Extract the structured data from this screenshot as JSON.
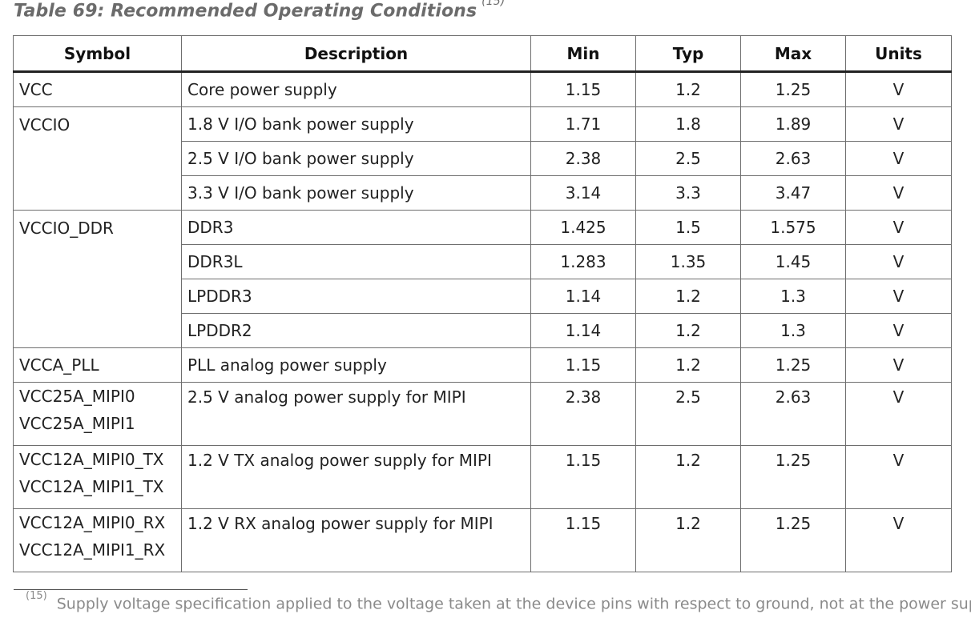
{
  "caption": {
    "title": "Table 69: Recommended Operating Conditions",
    "ref": "(15)"
  },
  "headers": {
    "symbol": "Symbol",
    "description": "Description",
    "min": "Min",
    "typ": "Typ",
    "max": "Max",
    "units": "Units"
  },
  "rows": [
    {
      "symbol": [
        "VCC"
      ],
      "description": "Core power supply",
      "min": "1.15",
      "typ": "1.2",
      "max": "1.25",
      "units": "V"
    },
    {
      "symbol": [
        "VCCIO"
      ],
      "description": "1.8 V I/O bank power supply",
      "min": "1.71",
      "typ": "1.8",
      "max": "1.89",
      "units": "V"
    },
    {
      "symbol": [],
      "description": "2.5 V I/O bank power supply",
      "min": "2.38",
      "typ": "2.5",
      "max": "2.63",
      "units": "V"
    },
    {
      "symbol": [],
      "description": "3.3 V I/O bank power supply",
      "min": "3.14",
      "typ": "3.3",
      "max": "3.47",
      "units": "V"
    },
    {
      "symbol": [
        "VCCIO_DDR"
      ],
      "description": "DDR3",
      "min": "1.425",
      "typ": "1.5",
      "max": "1.575",
      "units": "V"
    },
    {
      "symbol": [],
      "description": "DDR3L",
      "min": "1.283",
      "typ": "1.35",
      "max": "1.45",
      "units": "V"
    },
    {
      "symbol": [],
      "description": "LPDDR3",
      "min": "1.14",
      "typ": "1.2",
      "max": "1.3",
      "units": "V"
    },
    {
      "symbol": [],
      "description": "LPDDR2",
      "min": "1.14",
      "typ": "1.2",
      "max": "1.3",
      "units": "V"
    },
    {
      "symbol": [
        "VCCA_PLL"
      ],
      "description": "PLL analog power supply",
      "min": "1.15",
      "typ": "1.2",
      "max": "1.25",
      "units": "V"
    },
    {
      "symbol": [
        "VCC25A_MIPI0",
        "VCC25A_MIPI1"
      ],
      "description": "2.5 V analog power supply for MIPI",
      "min": "2.38",
      "typ": "2.5",
      "max": "2.63",
      "units": "V"
    },
    {
      "symbol": [
        "VCC12A_MIPI0_TX",
        "VCC12A_MIPI1_TX"
      ],
      "description": "1.2 V TX analog power supply for MIPI",
      "min": "1.15",
      "typ": "1.2",
      "max": "1.25",
      "units": "V"
    },
    {
      "symbol": [
        "VCC12A_MIPI0_RX",
        "VCC12A_MIPI1_RX"
      ],
      "description": "1.2 V RX analog power supply for MIPI",
      "min": "1.15",
      "typ": "1.2",
      "max": "1.25",
      "units": "V"
    }
  ],
  "footnote": {
    "ref": "(15)",
    "text": "Supply voltage specification applied to the voltage taken at the device pins with respect to ground, not at the power supply."
  }
}
